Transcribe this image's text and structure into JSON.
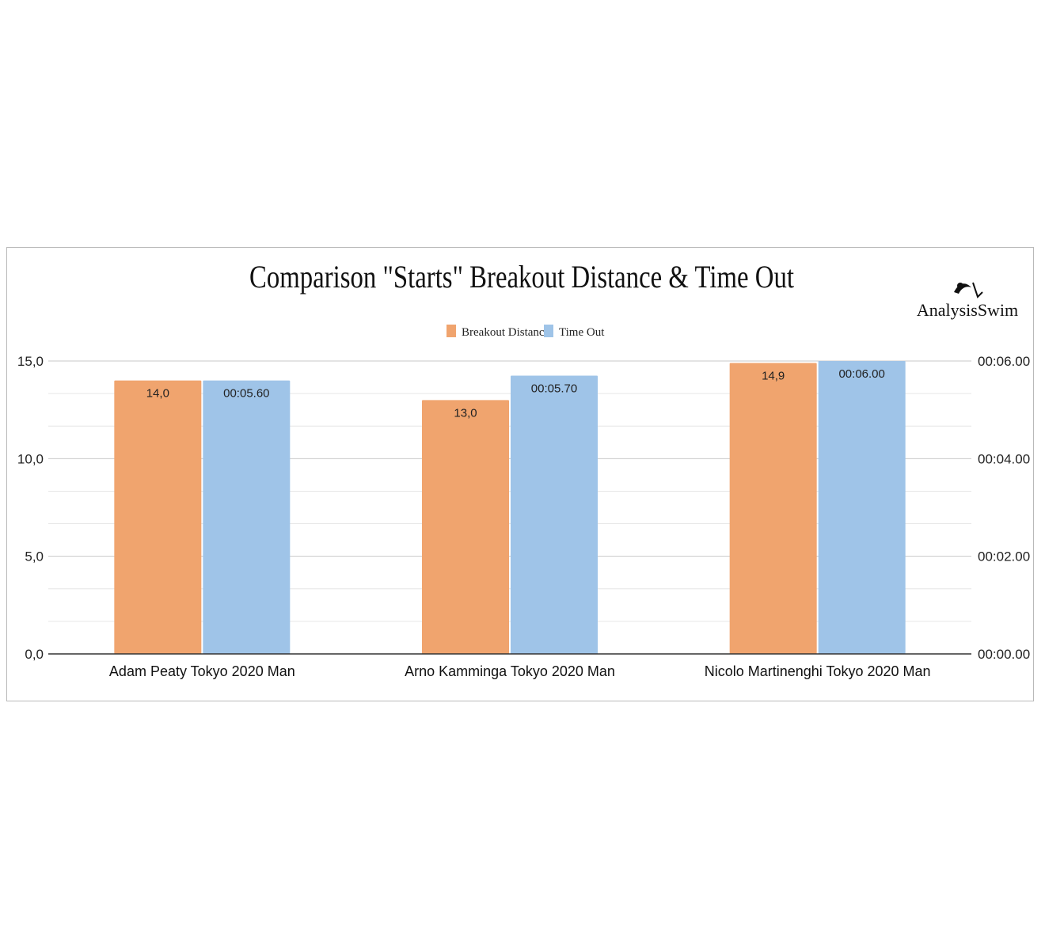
{
  "chart_data": {
    "type": "bar",
    "title": "Comparison \"Starts\" Breakout Distance & Time Out",
    "brand": "AnalysisSwim",
    "legend_position": "top",
    "grid": true,
    "categories": [
      "Adam Peaty Tokyo 2020 Man",
      "Arno Kamminga Tokyo 2020 Man",
      "Nicolo Martinenghi Tokyo 2020 Man"
    ],
    "series": [
      {
        "name": "Breakout Distance",
        "color": "#f0a46e",
        "axis": "left",
        "values": [
          14.0,
          13.0,
          14.9
        ],
        "labels": [
          "14,0",
          "13,0",
          "14,9"
        ]
      },
      {
        "name": "Time Out",
        "color": "#9fc4e8",
        "axis": "right",
        "values": [
          5.6,
          5.7,
          6.0
        ],
        "labels": [
          "00:05.60",
          "00:05.70",
          "00:06.00"
        ]
      }
    ],
    "y_left": {
      "ylim": [
        0,
        15
      ],
      "ticks": [
        0,
        5,
        10,
        15
      ],
      "tick_labels": [
        "0,0",
        "5,0",
        "10,0",
        "15,0"
      ]
    },
    "y_right": {
      "ylim": [
        0,
        6
      ],
      "ticks": [
        0,
        2,
        4,
        6
      ],
      "tick_labels": [
        "00:00.00",
        "00:02.00",
        "00:04.00",
        "00:06.00"
      ]
    }
  }
}
